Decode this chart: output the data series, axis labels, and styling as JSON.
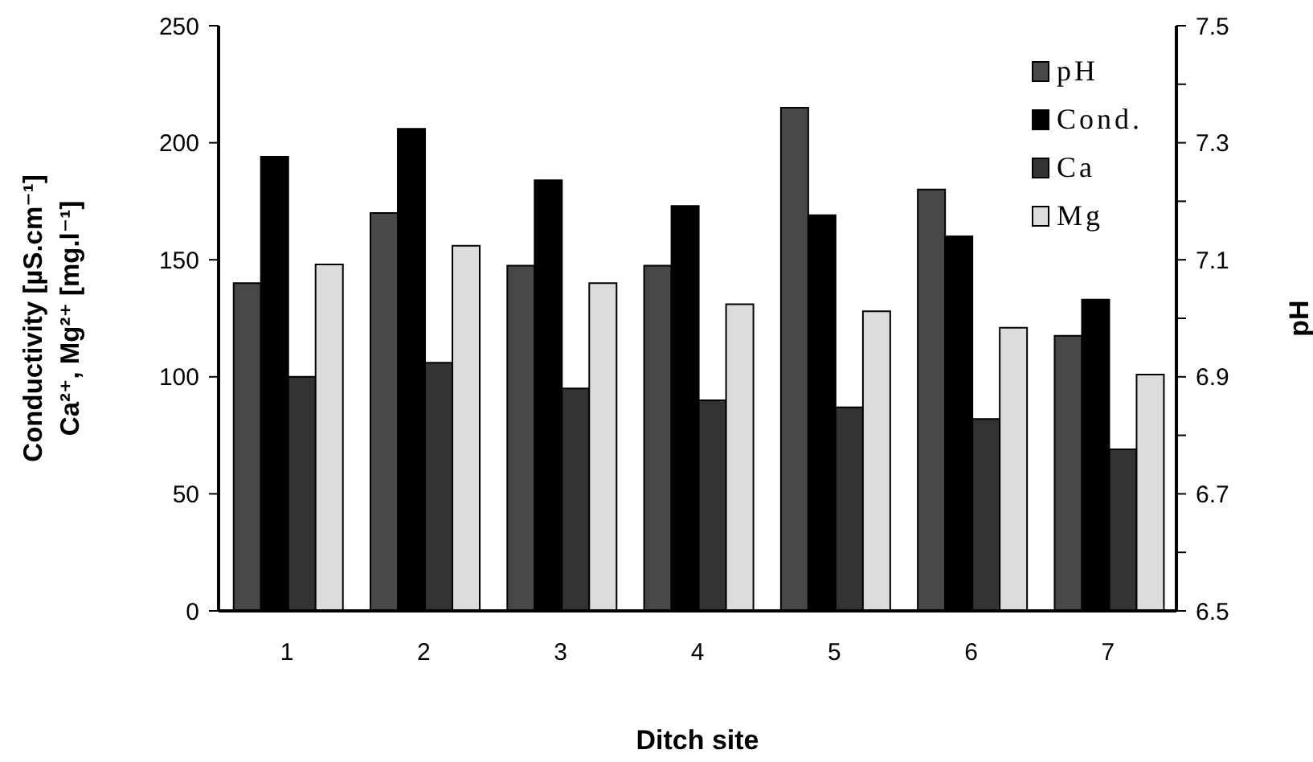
{
  "chart_data": {
    "type": "bar",
    "xlabel": "Ditch site",
    "ylabel": "Conductivity [µS.cm⁻¹]\nCa²⁺, Mg²⁺ [mg.l⁻¹]",
    "y2label": "pH",
    "categories": [
      "1",
      "2",
      "3",
      "4",
      "5",
      "6",
      "7"
    ],
    "series": [
      {
        "name": "pH",
        "color": "#484848",
        "axis": "y2",
        "values": [
          7.06,
          7.18,
          7.09,
          7.09,
          7.36,
          7.22,
          6.97
        ]
      },
      {
        "name": "Cond.",
        "color": "#000000",
        "values": [
          194,
          206,
          184,
          173,
          169,
          160,
          133
        ]
      },
      {
        "name": "Ca",
        "color": "#333333",
        "values": [
          100,
          106,
          95,
          90,
          87,
          82,
          69
        ]
      },
      {
        "name": "Mg",
        "color": "#dcdcdc",
        "values": [
          148,
          156,
          140,
          131,
          128,
          121,
          101
        ]
      }
    ],
    "ylim": [
      0,
      250
    ],
    "yticks": [
      0,
      50,
      100,
      150,
      200,
      250
    ],
    "y2lim": [
      6.5,
      7.5
    ],
    "y2ticks": [
      6.5,
      {
        "value": 6.6,
        "label": null
      },
      6.7,
      {
        "value": 6.8,
        "label": null
      },
      6.9,
      {
        "value": 7.0,
        "label": null
      },
      7.1,
      {
        "value": 7.2,
        "label": null
      },
      7.3,
      {
        "value": 7.4,
        "label": null
      },
      7.5
    ],
    "legend": "top right"
  }
}
